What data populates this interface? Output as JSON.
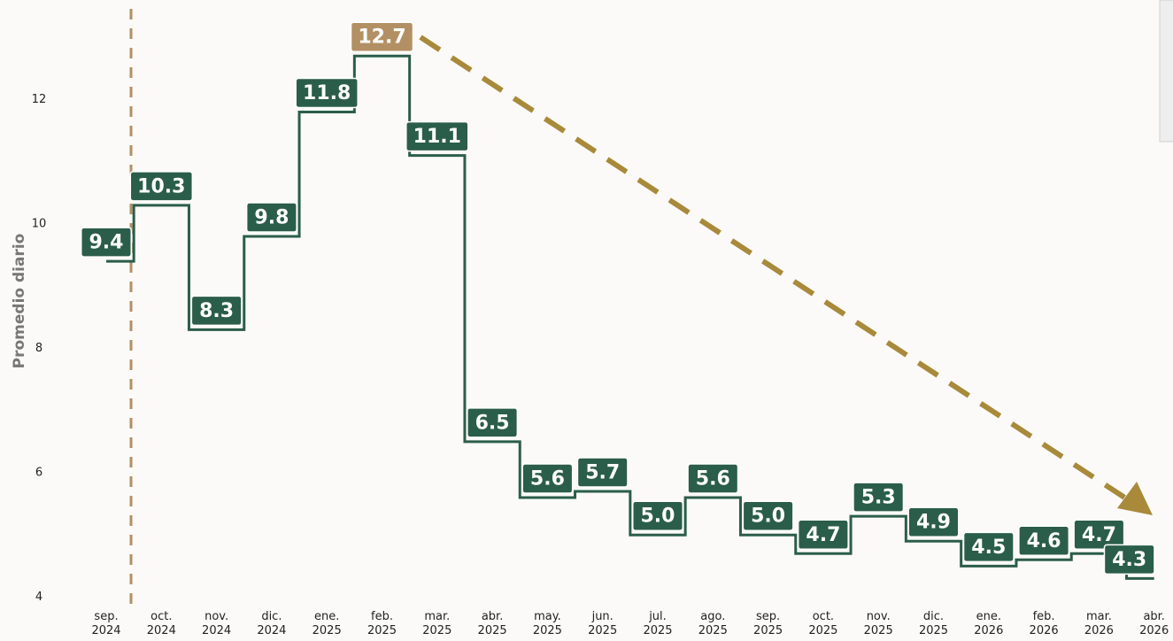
{
  "chart_data": {
    "type": "step",
    "y_label": "Promedio diario",
    "categories": [
      [
        "sep.",
        "2024"
      ],
      [
        "oct.",
        "2024"
      ],
      [
        "nov.",
        "2024"
      ],
      [
        "dic.",
        "2024"
      ],
      [
        "ene.",
        "2025"
      ],
      [
        "feb.",
        "2025"
      ],
      [
        "mar.",
        "2025"
      ],
      [
        "abr.",
        "2025"
      ],
      [
        "may.",
        "2025"
      ],
      [
        "jun.",
        "2025"
      ],
      [
        "jul.",
        "2025"
      ],
      [
        "ago.",
        "2025"
      ],
      [
        "sep.",
        "2025"
      ],
      [
        "oct.",
        "2025"
      ],
      [
        "nov.",
        "2025"
      ],
      [
        "dic.",
        "2025"
      ],
      [
        "ene.",
        "2026"
      ],
      [
        "feb.",
        "2026"
      ],
      [
        "mar.",
        "2026"
      ],
      [
        "abr.",
        "2026"
      ]
    ],
    "values": [
      9.4,
      10.3,
      8.3,
      9.8,
      11.8,
      12.7,
      11.1,
      6.5,
      5.6,
      5.7,
      5.0,
      5.6,
      5.0,
      4.7,
      5.3,
      4.9,
      4.5,
      4.6,
      4.7,
      4.3
    ],
    "value_labels": [
      "9.4",
      "10.3",
      "8.3",
      "9.8",
      "11.8",
      "12.7",
      "11.1",
      "6.5",
      "5.6",
      "5.7",
      "5.0",
      "5.6",
      "5.0",
      "4.7",
      "5.3",
      "4.9",
      "4.5",
      "4.6",
      "4.7",
      "4.3"
    ],
    "color": "#2b5d4b",
    "highlight_index": 5,
    "highlight_color": "#b39063",
    "ylim": [
      3.85,
      13.6
    ],
    "yticks": [
      4,
      6,
      8,
      10,
      12
    ],
    "grid": false
  }
}
